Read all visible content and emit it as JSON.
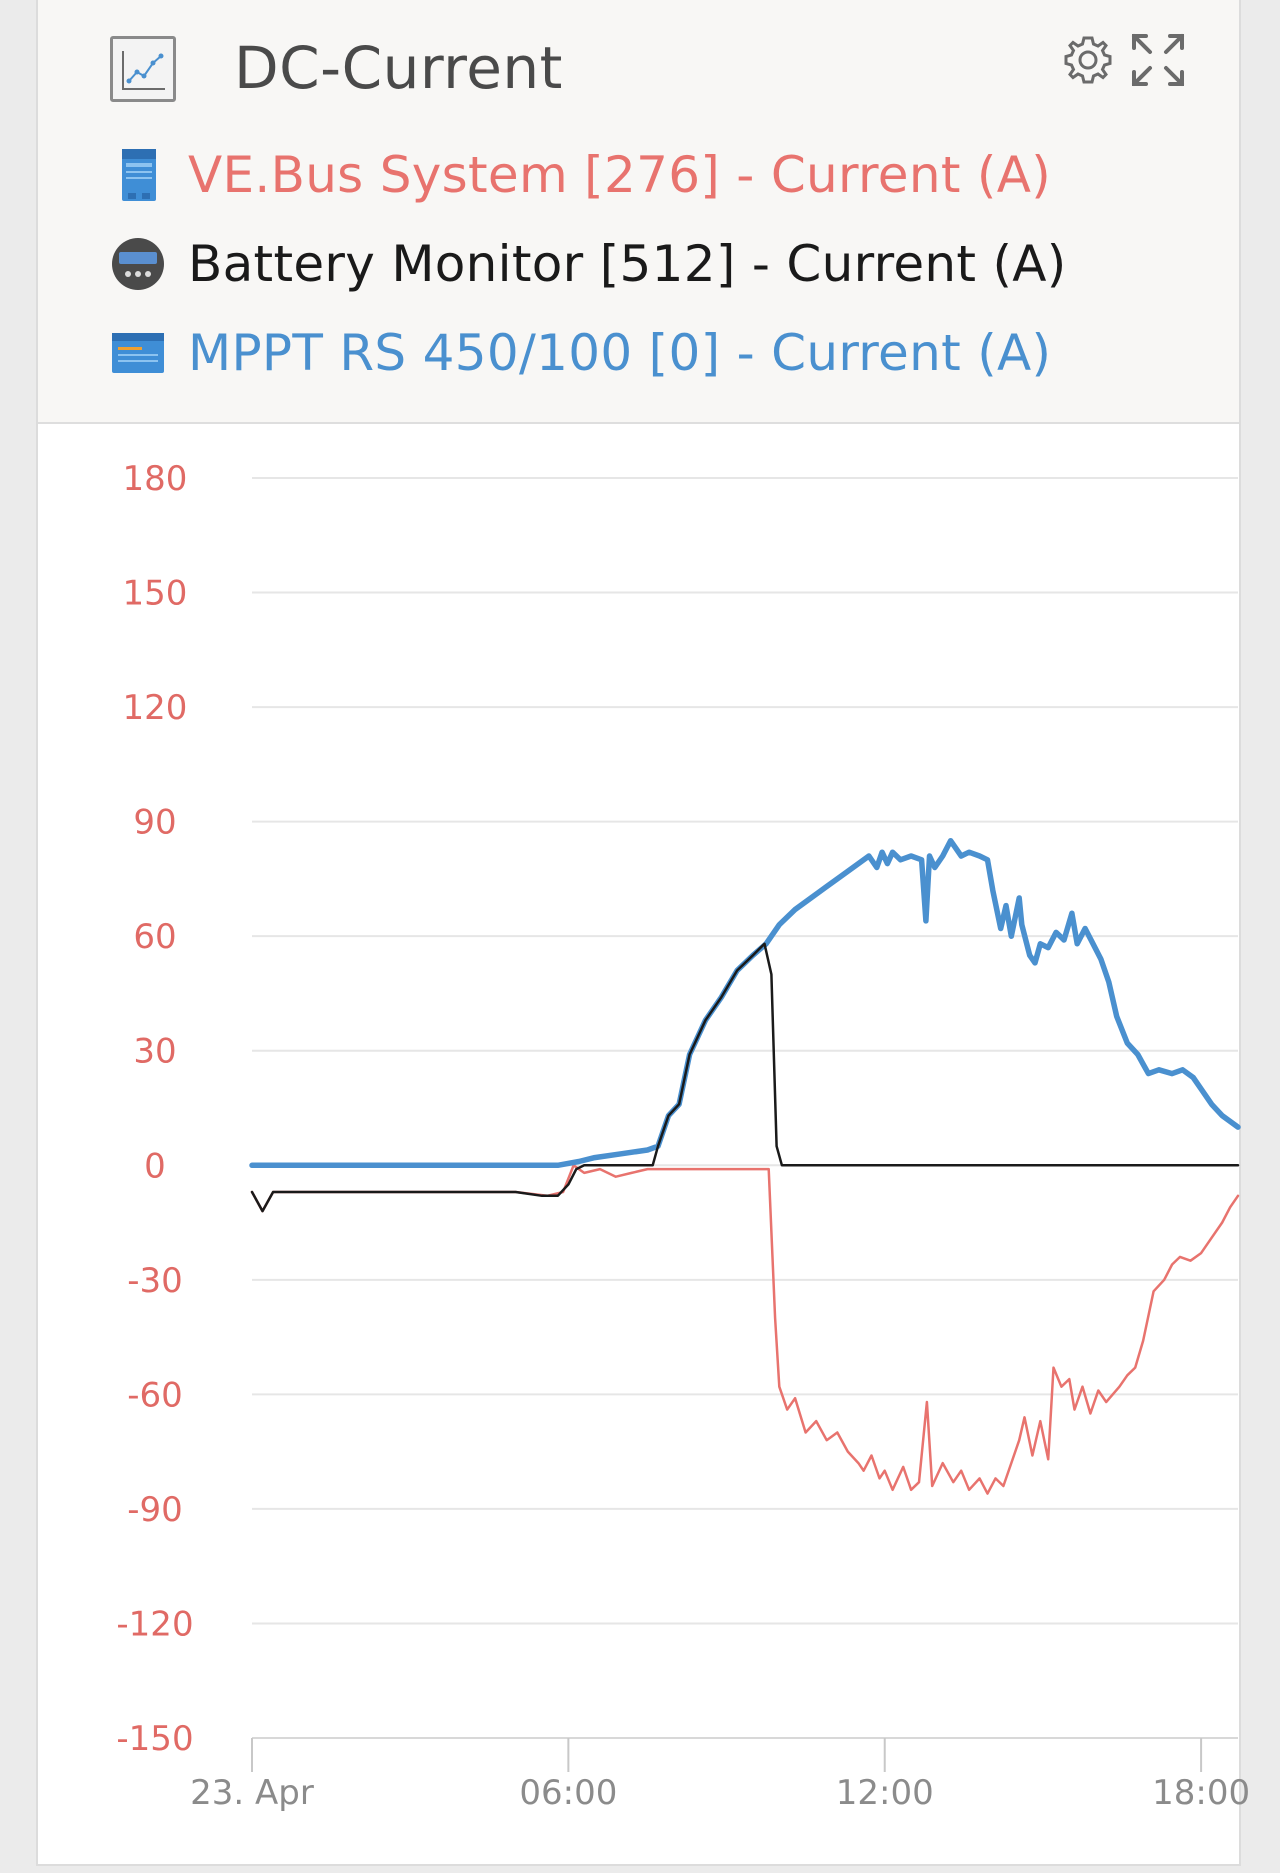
{
  "card": {
    "title": "DC-Current",
    "title_icon": "line-chart-icon"
  },
  "header_buttons": [
    {
      "name": "settings",
      "icon": "gear-icon"
    },
    {
      "name": "expand",
      "icon": "fullscreen-expand-icon"
    }
  ],
  "legend": [
    {
      "label": "VE.Bus System [276] - Current (A)",
      "color": "#e8736e",
      "icon": "inverter-device-icon"
    },
    {
      "label": "Battery Monitor [512] - Current (A)",
      "color": "#1a1a1a",
      "icon": "battery-monitor-device-icon"
    },
    {
      "label": "MPPT RS 450/100 [0] - Current (A)",
      "color": "#4a90cf",
      "icon": "solar-charger-device-icon"
    }
  ],
  "chart_data": {
    "type": "line",
    "title": "DC-Current",
    "ylabel": "",
    "xlabel": "",
    "ylim": [
      -150,
      180
    ],
    "yticks": [
      180,
      150,
      120,
      90,
      60,
      30,
      0,
      -30,
      -60,
      -90,
      -120,
      -150
    ],
    "xlim_hours": [
      0,
      18.7
    ],
    "xticks": [
      {
        "label": "23. Apr",
        "hour": 0
      },
      {
        "label": "06:00",
        "hour": 6
      },
      {
        "label": "12:00",
        "hour": 12
      },
      {
        "label": "18:00",
        "hour": 18
      }
    ],
    "grid": true,
    "series": [
      {
        "name": "VE.Bus System [276] - Current (A)",
        "color": "#e8736e",
        "points": [
          [
            0,
            -7
          ],
          [
            0.2,
            -12
          ],
          [
            0.4,
            -7
          ],
          [
            1.2,
            -7
          ],
          [
            2,
            -7
          ],
          [
            3,
            -7
          ],
          [
            4,
            -7
          ],
          [
            5,
            -7
          ],
          [
            5.6,
            -8
          ],
          [
            5.9,
            -7
          ],
          [
            6.1,
            0
          ],
          [
            6.3,
            -2
          ],
          [
            6.6,
            -1
          ],
          [
            6.9,
            -3
          ],
          [
            7.2,
            -2
          ],
          [
            7.5,
            -1
          ],
          [
            7.9,
            -1
          ],
          [
            8.3,
            -1
          ],
          [
            8.7,
            -1
          ],
          [
            9.1,
            -1
          ],
          [
            9.5,
            -1
          ],
          [
            9.8,
            -1
          ],
          [
            9.92,
            -40
          ],
          [
            10.0,
            -58
          ],
          [
            10.15,
            -64
          ],
          [
            10.3,
            -61
          ],
          [
            10.5,
            -70
          ],
          [
            10.7,
            -67
          ],
          [
            10.9,
            -72
          ],
          [
            11.1,
            -70
          ],
          [
            11.3,
            -75
          ],
          [
            11.5,
            -78
          ],
          [
            11.6,
            -80
          ],
          [
            11.75,
            -76
          ],
          [
            11.9,
            -82
          ],
          [
            12.0,
            -80
          ],
          [
            12.15,
            -85
          ],
          [
            12.35,
            -79
          ],
          [
            12.5,
            -85
          ],
          [
            12.65,
            -83
          ],
          [
            12.8,
            -62
          ],
          [
            12.9,
            -84
          ],
          [
            13.1,
            -78
          ],
          [
            13.3,
            -83
          ],
          [
            13.45,
            -80
          ],
          [
            13.6,
            -85
          ],
          [
            13.8,
            -82
          ],
          [
            13.95,
            -86
          ],
          [
            14.1,
            -82
          ],
          [
            14.25,
            -84
          ],
          [
            14.4,
            -78
          ],
          [
            14.55,
            -72
          ],
          [
            14.65,
            -66
          ],
          [
            14.8,
            -76
          ],
          [
            14.95,
            -67
          ],
          [
            15.1,
            -77
          ],
          [
            15.2,
            -53
          ],
          [
            15.35,
            -58
          ],
          [
            15.5,
            -56
          ],
          [
            15.6,
            -64
          ],
          [
            15.75,
            -58
          ],
          [
            15.9,
            -65
          ],
          [
            16.05,
            -59
          ],
          [
            16.2,
            -62
          ],
          [
            16.45,
            -58
          ],
          [
            16.6,
            -55
          ],
          [
            16.75,
            -53
          ],
          [
            16.9,
            -46
          ],
          [
            17.1,
            -33
          ],
          [
            17.3,
            -30
          ],
          [
            17.45,
            -26
          ],
          [
            17.6,
            -24
          ],
          [
            17.8,
            -25
          ],
          [
            18.0,
            -23
          ],
          [
            18.2,
            -19
          ],
          [
            18.4,
            -15
          ],
          [
            18.55,
            -11
          ],
          [
            18.7,
            -8
          ]
        ]
      },
      {
        "name": "Battery Monitor [512] - Current (A)",
        "color": "#1a1a1a",
        "points": [
          [
            0,
            -7
          ],
          [
            0.2,
            -12
          ],
          [
            0.4,
            -7
          ],
          [
            1,
            -7
          ],
          [
            2,
            -7
          ],
          [
            3,
            -7
          ],
          [
            4,
            -7
          ],
          [
            5,
            -7
          ],
          [
            5.5,
            -8
          ],
          [
            5.8,
            -8
          ],
          [
            6.0,
            -5
          ],
          [
            6.15,
            -1
          ],
          [
            6.3,
            0
          ],
          [
            7.0,
            0
          ],
          [
            7.6,
            0
          ],
          [
            7.7,
            5
          ],
          [
            7.9,
            13
          ],
          [
            8.1,
            16
          ],
          [
            8.3,
            29
          ],
          [
            8.6,
            38
          ],
          [
            8.9,
            44
          ],
          [
            9.2,
            51
          ],
          [
            9.5,
            55
          ],
          [
            9.72,
            58
          ],
          [
            9.85,
            50
          ],
          [
            9.95,
            5
          ],
          [
            10.05,
            0
          ],
          [
            11,
            0
          ],
          [
            12,
            0
          ],
          [
            13,
            0
          ],
          [
            14,
            0
          ],
          [
            15,
            0
          ],
          [
            16,
            0
          ],
          [
            17,
            0
          ],
          [
            18,
            0
          ],
          [
            18.7,
            0
          ]
        ]
      },
      {
        "name": "MPPT RS 450/100 [0] - Current (A)",
        "color": "#4a90cf",
        "points": [
          [
            0,
            0
          ],
          [
            1,
            0
          ],
          [
            2,
            0
          ],
          [
            3,
            0
          ],
          [
            4,
            0
          ],
          [
            5,
            0
          ],
          [
            5.8,
            0
          ],
          [
            6.2,
            1
          ],
          [
            6.5,
            2
          ],
          [
            7,
            3
          ],
          [
            7.5,
            4
          ],
          [
            7.7,
            5
          ],
          [
            7.9,
            13
          ],
          [
            8.1,
            16
          ],
          [
            8.3,
            29
          ],
          [
            8.6,
            38
          ],
          [
            8.9,
            44
          ],
          [
            9.2,
            51
          ],
          [
            9.5,
            55
          ],
          [
            9.75,
            58
          ],
          [
            10.0,
            63
          ],
          [
            10.3,
            67
          ],
          [
            10.6,
            70
          ],
          [
            10.9,
            73
          ],
          [
            11.2,
            76
          ],
          [
            11.5,
            79
          ],
          [
            11.7,
            81
          ],
          [
            11.85,
            78
          ],
          [
            11.95,
            82
          ],
          [
            12.05,
            79
          ],
          [
            12.15,
            82
          ],
          [
            12.3,
            80
          ],
          [
            12.5,
            81
          ],
          [
            12.7,
            80
          ],
          [
            12.78,
            64
          ],
          [
            12.85,
            81
          ],
          [
            12.95,
            78
          ],
          [
            13.1,
            81
          ],
          [
            13.25,
            85
          ],
          [
            13.45,
            81
          ],
          [
            13.6,
            82
          ],
          [
            13.8,
            81
          ],
          [
            13.95,
            80
          ],
          [
            14.05,
            72
          ],
          [
            14.2,
            62
          ],
          [
            14.3,
            68
          ],
          [
            14.4,
            60
          ],
          [
            14.55,
            70
          ],
          [
            14.6,
            63
          ],
          [
            14.75,
            55
          ],
          [
            14.85,
            53
          ],
          [
            14.95,
            58
          ],
          [
            15.1,
            57
          ],
          [
            15.25,
            61
          ],
          [
            15.4,
            59
          ],
          [
            15.55,
            66
          ],
          [
            15.65,
            58
          ],
          [
            15.8,
            62
          ],
          [
            15.95,
            58
          ],
          [
            16.1,
            54
          ],
          [
            16.25,
            48
          ],
          [
            16.4,
            39
          ],
          [
            16.6,
            32
          ],
          [
            16.8,
            29
          ],
          [
            17.0,
            24
          ],
          [
            17.2,
            25
          ],
          [
            17.45,
            24
          ],
          [
            17.65,
            25
          ],
          [
            17.85,
            23
          ],
          [
            18.0,
            20
          ],
          [
            18.2,
            16
          ],
          [
            18.4,
            13
          ],
          [
            18.7,
            10
          ]
        ]
      }
    ]
  }
}
